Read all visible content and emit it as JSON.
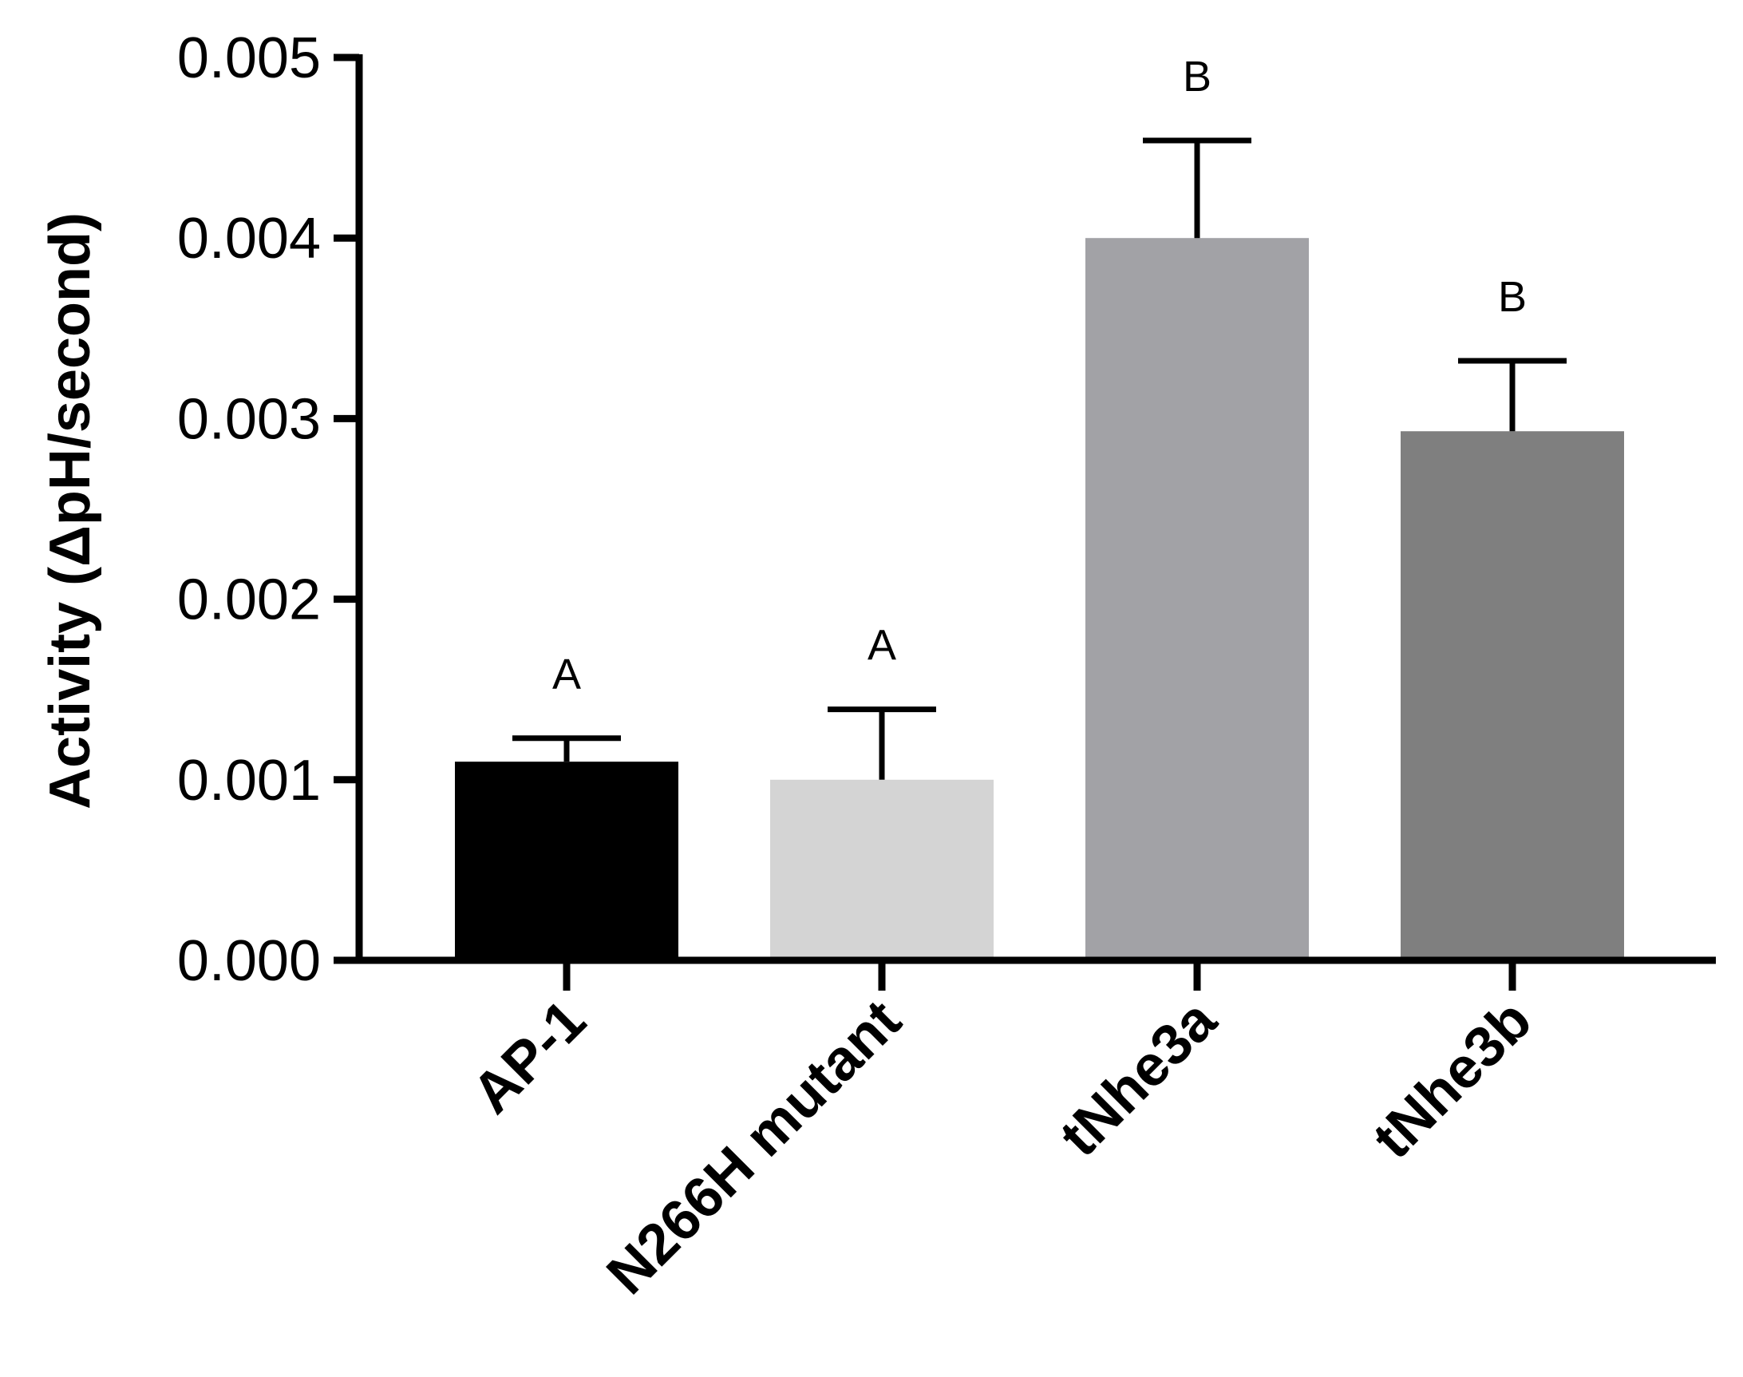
{
  "chart_data": {
    "type": "bar",
    "title": "",
    "xlabel": "",
    "ylabel": "Activity (ΔpH/second)",
    "ylim": [
      0,
      0.005
    ],
    "yticks": [
      "0.000",
      "0.001",
      "0.002",
      "0.003",
      "0.004",
      "0.005"
    ],
    "grid": false,
    "legend": "none",
    "categories": [
      "AP-1",
      "N266H mutant",
      "tNhe3a",
      "tNhe3b"
    ],
    "values": [
      0.0011,
      0.001,
      0.004,
      0.00293
    ],
    "errors": [
      0.00013,
      0.00039,
      0.00054,
      0.00039
    ],
    "significance": [
      "A",
      "A",
      "B",
      "B"
    ],
    "colors": [
      "#000000",
      "#d4d4d4",
      "#a2a2a6",
      "#7f7f7f"
    ]
  }
}
